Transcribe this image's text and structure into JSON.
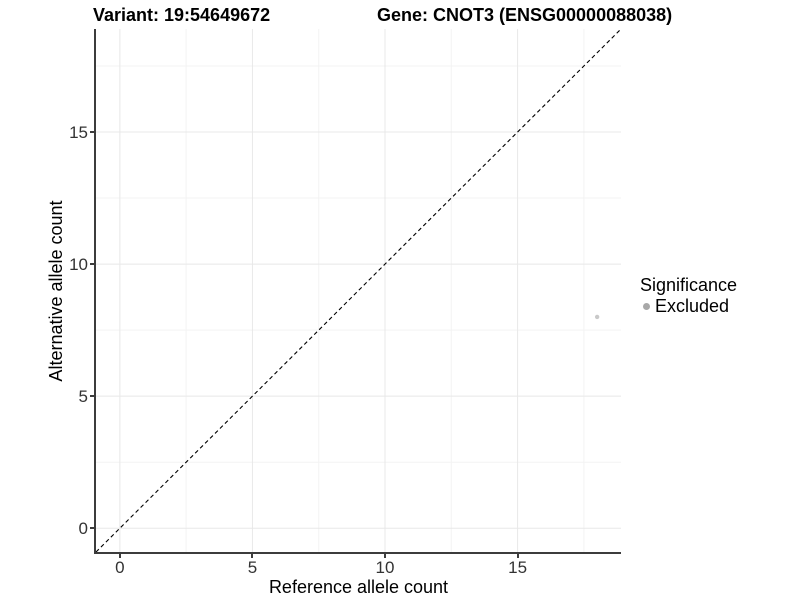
{
  "chart_data": {
    "type": "scatter",
    "titles": {
      "left": "Variant: 19:54649672",
      "right": "Gene: CNOT3 (ENSG00000088038)"
    },
    "xlabel": "Reference allele count",
    "ylabel": "Alternative allele count",
    "xlim": [
      -0.9,
      18.9
    ],
    "ylim": [
      -0.9,
      18.9
    ],
    "x_ticks": [
      0,
      5,
      10,
      15
    ],
    "y_ticks": [
      0,
      5,
      10,
      15
    ],
    "x_minor": [
      2.5,
      7.5,
      12.5,
      17.5
    ],
    "y_minor": [
      2.5,
      7.5,
      12.5,
      17.5
    ],
    "grid": "major+minor",
    "identity_line": {
      "equation": "y = x",
      "style": "dashed",
      "color": "#000000"
    },
    "series": [
      {
        "name": "Excluded",
        "color": "#c9c9c9",
        "point_radius": 2.2,
        "points": [
          [
            18,
            8
          ]
        ]
      }
    ],
    "legend": {
      "title": "Significance",
      "position": "right",
      "items": [
        {
          "label": "Excluded",
          "color": "#a8a8a8"
        }
      ]
    },
    "colors": {
      "background": "#ffffff",
      "axis_line": "#3c3c3c",
      "grid_major": "#e8e8e8",
      "grid_minor": "#f3f3f3",
      "tick_label": "#333333",
      "title_text": "#000000"
    }
  }
}
